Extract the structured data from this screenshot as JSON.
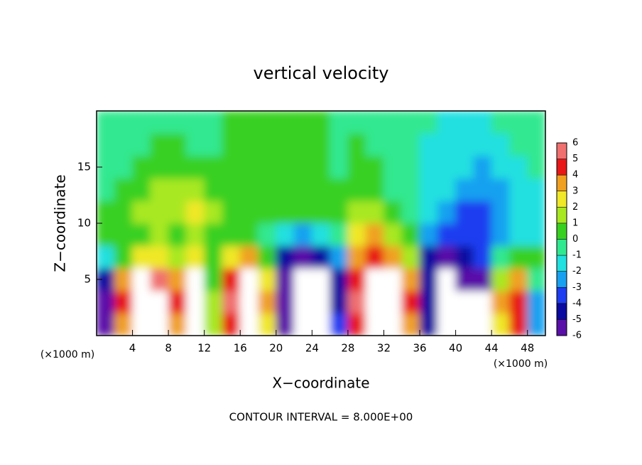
{
  "chart_data": {
    "type": "heatmap",
    "title": "vertical velocity",
    "x_label": "X−coordinate",
    "y_label": "Z−coordinate",
    "y_unit_label": "(×1000 m)",
    "x_unit_label": "(×1000 m)",
    "footer": "CONTOUR INTERVAL = 8.000E+00",
    "xlim": [
      0,
      50
    ],
    "ylim": [
      0,
      20
    ],
    "xticks": [
      4,
      8,
      12,
      16,
      20,
      24,
      28,
      32,
      36,
      40,
      44,
      48
    ],
    "yticks": [
      5,
      10,
      15
    ],
    "x": [
      1,
      3,
      5,
      7,
      9,
      11,
      13,
      15,
      17,
      19,
      21,
      23,
      25,
      27,
      29,
      31,
      33,
      35,
      37,
      39,
      41,
      43,
      45,
      47,
      49
    ],
    "y": [
      1,
      3,
      5,
      7,
      9,
      11,
      13,
      15,
      17,
      19
    ],
    "z": [
      [
        -5,
        4,
        8,
        7,
        4,
        8,
        2,
        5,
        8,
        3,
        -5,
        -8,
        -7,
        -3,
        5,
        8,
        8,
        4,
        -4,
        -7,
        -7,
        -8,
        3,
        5,
        -2
      ],
      [
        -6,
        5,
        8,
        8,
        5,
        8,
        2,
        6,
        8,
        4,
        -5,
        -8,
        -8,
        -4,
        6,
        9,
        9,
        5,
        -4,
        -8,
        -7,
        -8,
        4,
        5,
        -2
      ],
      [
        -4,
        4,
        7,
        6,
        4,
        7,
        1,
        5,
        7,
        3,
        -5,
        -7,
        -7,
        -4,
        5,
        8,
        8,
        4,
        -4,
        -7,
        -6,
        -6,
        2,
        4,
        0
      ],
      [
        -1,
        1,
        3,
        3,
        2,
        3,
        1,
        3,
        4,
        1,
        -4,
        -5,
        -4,
        -2,
        4,
        5,
        4,
        2,
        -4,
        -5,
        -4,
        -3,
        0,
        1,
        1
      ],
      [
        1,
        1,
        1,
        2,
        1,
        2,
        1,
        1,
        1,
        0,
        -1,
        -2,
        -1,
        0,
        3,
        4,
        2,
        1,
        -2,
        -3,
        -3,
        -3,
        -2,
        -1,
        -1
      ],
      [
        1,
        1,
        2,
        2,
        2,
        3,
        2,
        1,
        1,
        1,
        1,
        1,
        1,
        1,
        2,
        2,
        1,
        0,
        -1,
        -2,
        -3,
        -3,
        -2,
        -1,
        -1
      ],
      [
        0,
        1,
        1,
        2,
        2,
        2,
        1,
        1,
        1,
        1,
        1,
        1,
        1,
        1,
        1,
        1,
        0,
        0,
        -1,
        -1,
        -2,
        -2,
        -2,
        -1,
        -1
      ],
      [
        0,
        0,
        1,
        1,
        1,
        1,
        1,
        1,
        1,
        1,
        1,
        1,
        1,
        0,
        1,
        1,
        0,
        0,
        -1,
        -1,
        -1,
        -2,
        -1,
        -1,
        0
      ],
      [
        0,
        0,
        0,
        1,
        1,
        0,
        0,
        1,
        1,
        1,
        1,
        1,
        1,
        0,
        1,
        0,
        0,
        0,
        -1,
        -1,
        -1,
        -1,
        -1,
        0,
        0
      ],
      [
        0,
        0,
        0,
        0,
        0,
        0,
        0,
        1,
        1,
        1,
        1,
        1,
        1,
        0,
        0,
        0,
        0,
        0,
        0,
        -1,
        -1,
        -1,
        0,
        0,
        0
      ]
    ],
    "colorbar_ticks": [
      -6,
      -5,
      -4,
      -3,
      -2,
      -1,
      0,
      1,
      2,
      3,
      4,
      5,
      6
    ],
    "colors": [
      "#5a10a8",
      "#0a0aa0",
      "#1e3cf0",
      "#18a0f0",
      "#20e0e0",
      "#30e890",
      "#38d020",
      "#a8e820",
      "#f0e828",
      "#f0a020",
      "#e81818",
      "#f07070"
    ],
    "extreme_color": "#ffffff"
  }
}
